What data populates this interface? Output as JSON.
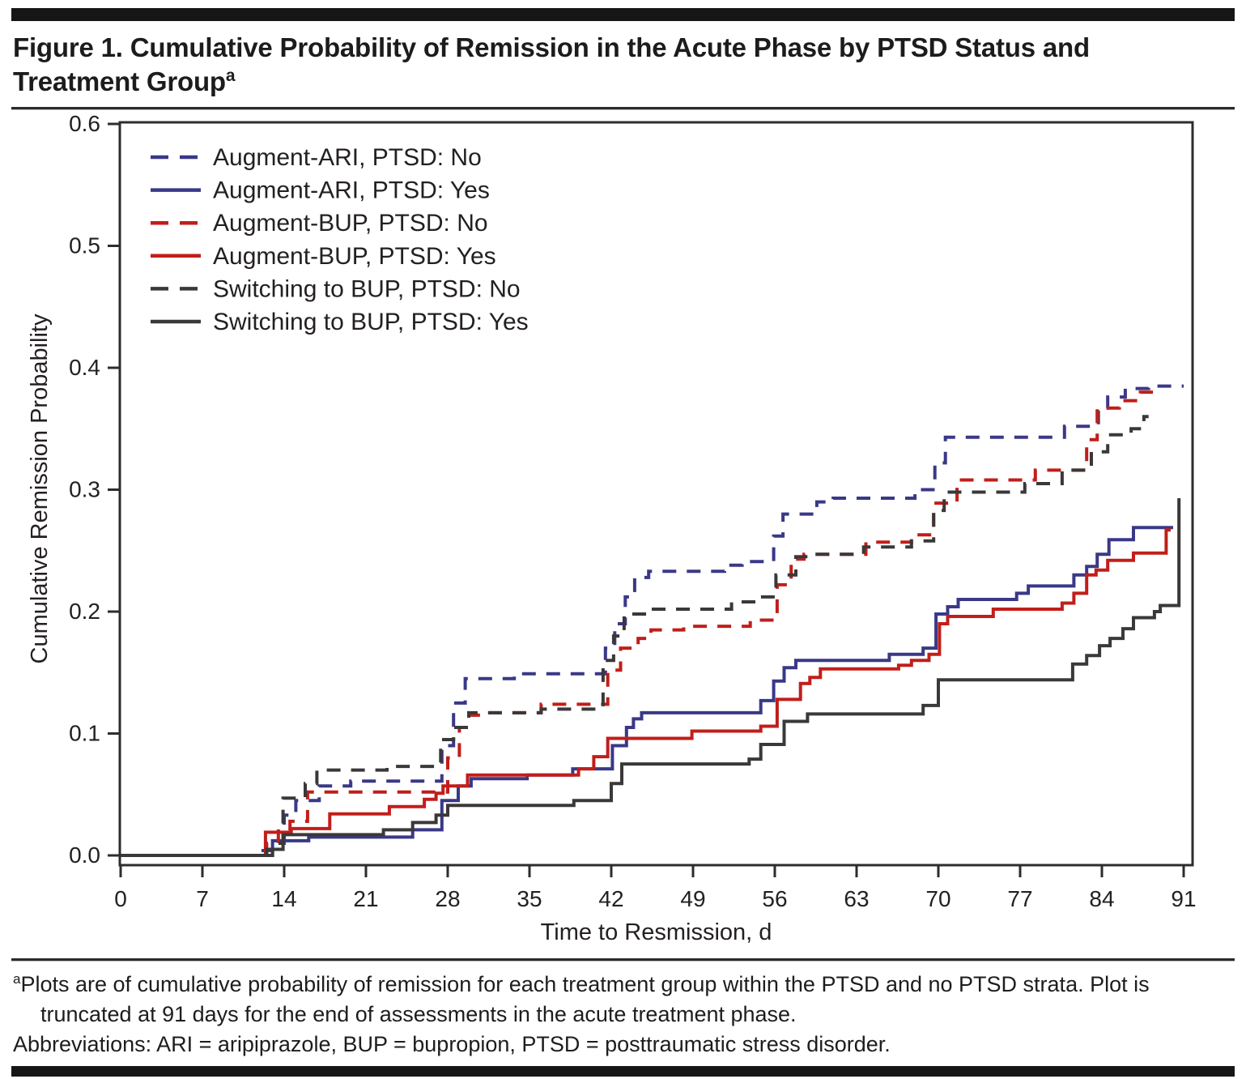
{
  "page": {
    "title_line1": "Figure 1. Cumulative Probability of Remission in the Acute Phase by PTSD Status and",
    "title_line2": "Treatment Group",
    "title_superscript": "a",
    "footnote_marker": "a",
    "footnote_text": "Plots are of cumulative probability of remission for each treatment group within the PTSD and no PTSD strata. Plot is truncated at 91 days for the end of assessments in the acute treatment phase.",
    "abbreviations": "Abbreviations: ARI = aripiprazole, BUP = bupropion, PTSD = posttraumatic stress disorder."
  },
  "colors": {
    "navy": "#3a3887",
    "red": "#c11e1a",
    "dark": "#3a3838",
    "axis": "#2e2c2d",
    "text": "#242021"
  },
  "chart_data": {
    "type": "line",
    "subtype": "step-after",
    "title": "",
    "xlabel": "Time to Resmission, d",
    "ylabel": "Cumulative Remission Probability",
    "xlim": [
      0,
      91
    ],
    "ylim": [
      0,
      0.6
    ],
    "xticks": [
      0,
      7,
      14,
      21,
      28,
      35,
      42,
      49,
      56,
      63,
      70,
      77,
      84,
      91
    ],
    "yticks": [
      "0.0",
      "0.1",
      "0.2",
      "0.3",
      "0.4",
      "0.5",
      "0.6"
    ],
    "grid": false,
    "frame": true,
    "legend_position": "top-left-inside",
    "series": [
      {
        "name": "Augment-ARI, PTSD: No",
        "color_key": "navy",
        "dashed": true,
        "end_day": 91,
        "points": [
          [
            0,
            0
          ],
          [
            11.5,
            0.004
          ],
          [
            13,
            0.01
          ],
          [
            14,
            0.033
          ],
          [
            15,
            0.045
          ],
          [
            17,
            0.057
          ],
          [
            19.7,
            0.061
          ],
          [
            27.5,
            0.09
          ],
          [
            28.5,
            0.125
          ],
          [
            29.5,
            0.145
          ],
          [
            33.7,
            0.149
          ],
          [
            41.5,
            0.17
          ],
          [
            42.3,
            0.19
          ],
          [
            43.2,
            0.212
          ],
          [
            44,
            0.228
          ],
          [
            45.2,
            0.233
          ],
          [
            51.7,
            0.238
          ],
          [
            53.2,
            0.241
          ],
          [
            55.9,
            0.262
          ],
          [
            56.7,
            0.28
          ],
          [
            59.6,
            0.29
          ],
          [
            61,
            0.293
          ],
          [
            68,
            0.3
          ],
          [
            69.7,
            0.322
          ],
          [
            70.6,
            0.343
          ],
          [
            80.8,
            0.352
          ],
          [
            83.7,
            0.367
          ],
          [
            84.5,
            0.376
          ],
          [
            86,
            0.383
          ],
          [
            88,
            0.385
          ]
        ]
      },
      {
        "name": "Augment-ARI, PTSD: Yes",
        "color_key": "navy",
        "dashed": false,
        "end_day": 90.1,
        "points": [
          [
            0,
            0
          ],
          [
            13,
            0.012
          ],
          [
            16.1,
            0.015
          ],
          [
            25,
            0.021
          ],
          [
            27.5,
            0.045
          ],
          [
            28.9,
            0.057
          ],
          [
            30,
            0.063
          ],
          [
            34.8,
            0.066
          ],
          [
            38.7,
            0.071
          ],
          [
            42.1,
            0.09
          ],
          [
            43.3,
            0.105
          ],
          [
            43.9,
            0.112
          ],
          [
            44.6,
            0.117
          ],
          [
            54.8,
            0.127
          ],
          [
            55.9,
            0.143
          ],
          [
            56.8,
            0.154
          ],
          [
            57.8,
            0.16
          ],
          [
            65.8,
            0.165
          ],
          [
            68.7,
            0.17
          ],
          [
            69.8,
            0.198
          ],
          [
            70.8,
            0.204
          ],
          [
            71.7,
            0.21
          ],
          [
            76.7,
            0.215
          ],
          [
            77.7,
            0.221
          ],
          [
            81.6,
            0.23
          ],
          [
            82.7,
            0.237
          ],
          [
            83.6,
            0.247
          ],
          [
            84.6,
            0.259
          ],
          [
            86.7,
            0.269
          ]
        ]
      },
      {
        "name": "Augment-BUP, PTSD: No",
        "color_key": "red",
        "dashed": true,
        "end_day": 88.5,
        "points": [
          [
            0,
            0
          ],
          [
            12.5,
            0.01
          ],
          [
            13.5,
            0.02
          ],
          [
            14.5,
            0.028
          ],
          [
            16,
            0.052
          ],
          [
            28,
            0.08
          ],
          [
            29,
            0.105
          ],
          [
            29.8,
            0.115
          ],
          [
            31,
            0.117
          ],
          [
            36,
            0.124
          ],
          [
            41.7,
            0.152
          ],
          [
            42.8,
            0.17
          ],
          [
            44.3,
            0.178
          ],
          [
            45.4,
            0.185
          ],
          [
            48.2,
            0.188
          ],
          [
            53.9,
            0.193
          ],
          [
            56.2,
            0.222
          ],
          [
            57.4,
            0.243
          ],
          [
            58.5,
            0.247
          ],
          [
            63.8,
            0.257
          ],
          [
            67.7,
            0.263
          ],
          [
            69.6,
            0.289
          ],
          [
            71.6,
            0.308
          ],
          [
            78.3,
            0.316
          ],
          [
            82.7,
            0.341
          ],
          [
            83.6,
            0.367
          ],
          [
            85.5,
            0.373
          ],
          [
            87.3,
            0.38
          ]
        ]
      },
      {
        "name": "Augment-BUP, PTSD: Yes",
        "color_key": "red",
        "dashed": false,
        "end_day": 89.9,
        "points": [
          [
            0,
            0
          ],
          [
            12.4,
            0.019
          ],
          [
            14.6,
            0.022
          ],
          [
            17.9,
            0.034
          ],
          [
            23,
            0.04
          ],
          [
            26,
            0.046
          ],
          [
            27,
            0.051
          ],
          [
            27.6,
            0.057
          ],
          [
            29.7,
            0.066
          ],
          [
            39.2,
            0.071
          ],
          [
            40.5,
            0.081
          ],
          [
            41.7,
            0.096
          ],
          [
            48.9,
            0.102
          ],
          [
            54.8,
            0.106
          ],
          [
            56.2,
            0.128
          ],
          [
            58.2,
            0.141
          ],
          [
            59,
            0.146
          ],
          [
            59.9,
            0.153
          ],
          [
            66.6,
            0.156
          ],
          [
            67.7,
            0.16
          ],
          [
            69.2,
            0.165
          ],
          [
            70.1,
            0.19
          ],
          [
            70.8,
            0.196
          ],
          [
            74.7,
            0.202
          ],
          [
            80.6,
            0.207
          ],
          [
            81.6,
            0.215
          ],
          [
            82.7,
            0.23
          ],
          [
            83.5,
            0.234
          ],
          [
            84.5,
            0.242
          ],
          [
            86.7,
            0.248
          ],
          [
            89.5,
            0.267
          ]
        ]
      },
      {
        "name": "Switching to BUP, PTSD: No",
        "color_key": "dark",
        "dashed": true,
        "end_day": 88,
        "points": [
          [
            0,
            0
          ],
          [
            13,
            0.01
          ],
          [
            13.9,
            0.047
          ],
          [
            15.8,
            0.059
          ],
          [
            16.8,
            0.07
          ],
          [
            22.8,
            0.073
          ],
          [
            27.4,
            0.095
          ],
          [
            28.5,
            0.105
          ],
          [
            29.8,
            0.117
          ],
          [
            36,
            0.12
          ],
          [
            41.3,
            0.16
          ],
          [
            42.2,
            0.18
          ],
          [
            43.1,
            0.198
          ],
          [
            45.3,
            0.202
          ],
          [
            52.3,
            0.208
          ],
          [
            54.2,
            0.212
          ],
          [
            56.1,
            0.23
          ],
          [
            57.8,
            0.245
          ],
          [
            59,
            0.247
          ],
          [
            63.6,
            0.253
          ],
          [
            67.7,
            0.258
          ],
          [
            69.6,
            0.283
          ],
          [
            70.5,
            0.298
          ],
          [
            77.4,
            0.305
          ],
          [
            80.6,
            0.316
          ],
          [
            83.1,
            0.331
          ],
          [
            84.5,
            0.345
          ],
          [
            86.5,
            0.35
          ],
          [
            87.6,
            0.36
          ]
        ]
      },
      {
        "name": "Switching to BUP, PTSD: Yes",
        "color_key": "dark",
        "dashed": false,
        "end_day": 90.6,
        "points": [
          [
            0,
            0
          ],
          [
            12.5,
            0.005
          ],
          [
            13.9,
            0.017
          ],
          [
            22.5,
            0.021
          ],
          [
            25,
            0.027
          ],
          [
            27,
            0.033
          ],
          [
            28,
            0.041
          ],
          [
            38.8,
            0.045
          ],
          [
            42,
            0.059
          ],
          [
            42.9,
            0.075
          ],
          [
            53.8,
            0.079
          ],
          [
            54.8,
            0.091
          ],
          [
            56.8,
            0.11
          ],
          [
            58.8,
            0.116
          ],
          [
            68.7,
            0.123
          ],
          [
            70,
            0.144
          ],
          [
            81.5,
            0.157
          ],
          [
            82.7,
            0.164
          ],
          [
            83.8,
            0.172
          ],
          [
            84.7,
            0.178
          ],
          [
            85.8,
            0.186
          ],
          [
            86.7,
            0.195
          ],
          [
            88.5,
            0.2
          ],
          [
            89,
            0.205
          ],
          [
            90.6,
            0.293
          ]
        ]
      }
    ]
  }
}
